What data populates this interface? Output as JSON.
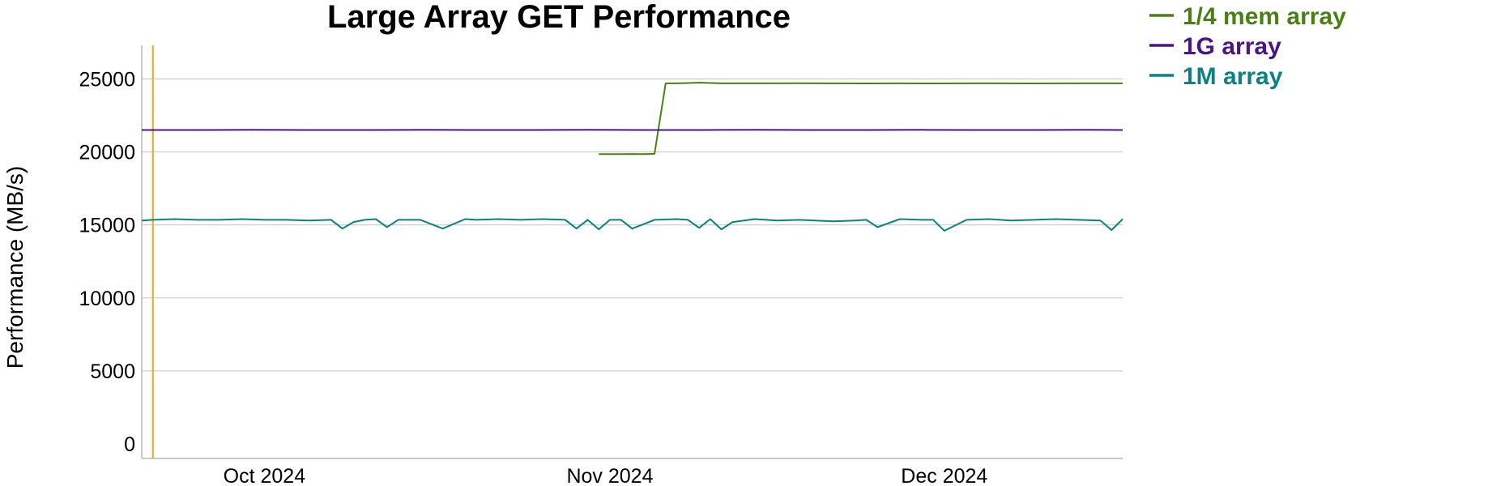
{
  "chart_data": {
    "type": "line",
    "title": "Large Array GET Performance",
    "xlabel": "",
    "ylabel": "Performance (MB/s)",
    "ylim": [
      -1000,
      27300
    ],
    "xlim": [
      "2024-09-20",
      "2024-12-17"
    ],
    "y_ticks": [
      0,
      5000,
      10000,
      15000,
      20000,
      25000
    ],
    "x_ticks": [
      {
        "label": "Oct 2024",
        "date": "2024-10-01"
      },
      {
        "label": "Nov 2024",
        "date": "2024-11-01"
      },
      {
        "label": "Dec 2024",
        "date": "2024-12-01"
      }
    ],
    "grid": true,
    "legend_position": "top-right, outside plot",
    "marker_line": {
      "date": "2024-09-21",
      "color": "#e0b22c"
    },
    "series": [
      {
        "name": "1/4 mem array",
        "color": "#4a7f17",
        "x": [
          "2024-10-31",
          "2024-11-01",
          "2024-11-02",
          "2024-11-03",
          "2024-11-04",
          "2024-11-05",
          "2024-11-06",
          "2024-11-07",
          "2024-11-08",
          "2024-11-09",
          "2024-11-11",
          "2024-11-13",
          "2024-11-15",
          "2024-11-18",
          "2024-11-21",
          "2024-11-24",
          "2024-11-27",
          "2024-11-30",
          "2024-12-03",
          "2024-12-06",
          "2024-12-09",
          "2024-12-12",
          "2024-12-15",
          "2024-12-17"
        ],
        "values": [
          19850,
          19850,
          19850,
          19860,
          19850,
          19870,
          24700,
          24700,
          24720,
          24750,
          24700,
          24700,
          24700,
          24710,
          24700,
          24690,
          24700,
          24690,
          24700,
          24700,
          24690,
          24700,
          24700,
          24700
        ]
      },
      {
        "name": "1G array",
        "color": "#4b1582",
        "x": [
          "2024-09-20",
          "2024-09-25",
          "2024-09-30",
          "2024-10-05",
          "2024-10-10",
          "2024-10-15",
          "2024-10-20",
          "2024-10-25",
          "2024-10-30",
          "2024-11-04",
          "2024-11-09",
          "2024-11-14",
          "2024-11-19",
          "2024-11-24",
          "2024-11-29",
          "2024-12-04",
          "2024-12-09",
          "2024-12-14",
          "2024-12-17"
        ],
        "values": [
          21500,
          21500,
          21510,
          21500,
          21500,
          21510,
          21500,
          21500,
          21510,
          21500,
          21500,
          21510,
          21500,
          21500,
          21510,
          21500,
          21500,
          21510,
          21500
        ]
      },
      {
        "name": "1M array",
        "color": "#0f8080",
        "x": [
          "2024-09-20",
          "2024-09-21",
          "2024-09-23",
          "2024-09-25",
          "2024-09-27",
          "2024-09-29",
          "2024-10-01",
          "2024-10-03",
          "2024-10-05",
          "2024-10-07",
          "2024-10-08",
          "2024-10-09",
          "2024-10-10",
          "2024-10-11",
          "2024-10-12",
          "2024-10-13",
          "2024-10-14",
          "2024-10-15",
          "2024-10-17",
          "2024-10-19",
          "2024-10-20",
          "2024-10-22",
          "2024-10-24",
          "2024-10-26",
          "2024-10-28",
          "2024-10-29",
          "2024-10-30",
          "2024-10-31",
          "2024-11-01",
          "2024-11-02",
          "2024-11-03",
          "2024-11-05",
          "2024-11-07",
          "2024-11-08",
          "2024-11-09",
          "2024-11-10",
          "2024-11-11",
          "2024-11-12",
          "2024-11-14",
          "2024-11-16",
          "2024-11-18",
          "2024-11-21",
          "2024-11-23",
          "2024-11-24",
          "2024-11-25",
          "2024-11-27",
          "2024-11-29",
          "2024-11-30",
          "2024-12-01",
          "2024-12-03",
          "2024-12-05",
          "2024-12-07",
          "2024-12-09",
          "2024-12-11",
          "2024-12-13",
          "2024-12-15",
          "2024-12-16",
          "2024-12-17"
        ],
        "values": [
          15300,
          15350,
          15400,
          15350,
          15350,
          15400,
          15350,
          15350,
          15300,
          15350,
          14750,
          15200,
          15350,
          15400,
          14850,
          15350,
          15350,
          15350,
          14750,
          15400,
          15350,
          15400,
          15350,
          15400,
          15350,
          14750,
          15350,
          14700,
          15350,
          15350,
          14750,
          15350,
          15400,
          15350,
          14800,
          15400,
          14700,
          15200,
          15400,
          15300,
          15350,
          15250,
          15300,
          15350,
          14850,
          15400,
          15350,
          15350,
          14600,
          15350,
          15400,
          15300,
          15350,
          15400,
          15350,
          15300,
          14650,
          15400
        ]
      }
    ]
  }
}
